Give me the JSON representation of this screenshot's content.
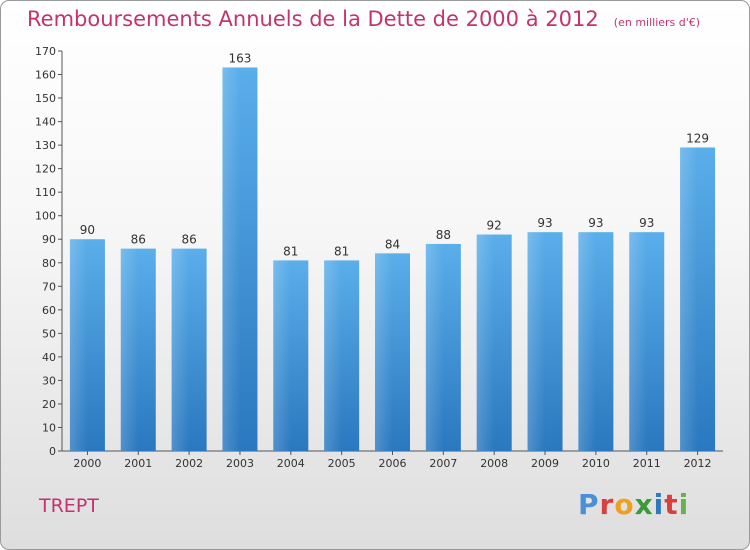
{
  "title": "Remboursements Annuels de la Dette de 2000 à 2012",
  "unit_note": "(en milliers d'€)",
  "commune": "TREPT",
  "brand": "Proxiti",
  "brand_colors": [
    "#4a90d9",
    "#d93f3f",
    "#f0a020",
    "#3b9b3b",
    "#2f78c0",
    "#d93f3f",
    "#6ab04c"
  ],
  "title_color": "#c4336d",
  "bar_color": "#3a8fd8",
  "chart_data": {
    "type": "bar",
    "categories": [
      "2000",
      "2001",
      "2002",
      "2003",
      "2004",
      "2005",
      "2006",
      "2007",
      "2008",
      "2009",
      "2010",
      "2011",
      "2012"
    ],
    "values": [
      90,
      86,
      86,
      163,
      81,
      81,
      84,
      88,
      92,
      93,
      93,
      93,
      129
    ],
    "ylim": [
      0,
      170
    ],
    "yticks": [
      0,
      10,
      20,
      30,
      40,
      50,
      60,
      70,
      80,
      90,
      100,
      110,
      120,
      130,
      140,
      150,
      160,
      170
    ],
    "grid": false,
    "data_labels": true
  }
}
